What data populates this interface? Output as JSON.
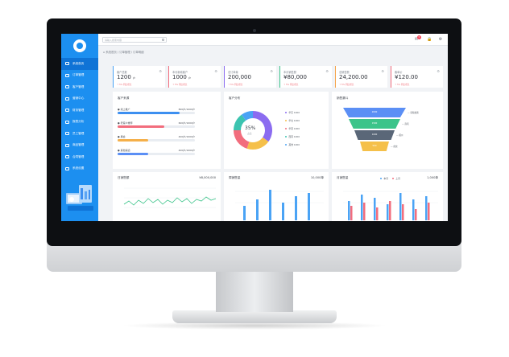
{
  "screen": {
    "search_placeholder": "请输入搜索内容",
    "breadcrumb": "系统首页 / 订单管理 / 订单明细",
    "nav": [
      {
        "label": "系统首页",
        "icon": "home-icon",
        "active": true
      },
      {
        "label": "订单管理",
        "icon": "doc-icon",
        "active": false
      },
      {
        "label": "客户管理",
        "icon": "user-icon",
        "active": false
      },
      {
        "label": "营销中心",
        "icon": "folder-icon",
        "active": false
      },
      {
        "label": "财务管理",
        "icon": "calc-icon",
        "active": false
      },
      {
        "label": "报表分析",
        "icon": "book-icon",
        "active": false
      },
      {
        "label": "员工管理",
        "icon": "person-icon",
        "active": false
      },
      {
        "label": "商品管理",
        "icon": "tag-icon",
        "active": false
      },
      {
        "label": "合同管理",
        "icon": "lock-icon",
        "active": false
      },
      {
        "label": "系统设置",
        "icon": "monitor-icon",
        "active": false
      }
    ],
    "notification_count": "5",
    "kpis": [
      {
        "title": "客户总数",
        "value": "1200",
        "unit": "户",
        "sub": "↑ 5% 同比增长",
        "color": "#4aa3f5"
      },
      {
        "title": "本月新增客户",
        "value": "1000",
        "unit": "户",
        "sub": "↑ 5% 同比增长",
        "color": "#f26d7d"
      },
      {
        "title": "总订单量",
        "value": "200,000",
        "unit": "",
        "sub": "↑ 5% 同比增长",
        "color": "#8b6cf0"
      },
      {
        "title": "本月销售额",
        "value": "¥80,000",
        "unit": "",
        "sub": "↑ 5% 同比增长",
        "color": "#3cc48a"
      },
      {
        "title": "总销售额",
        "value": "24,200.00",
        "unit": "",
        "sub": "↑ 5% 同比增长",
        "color": "#f5a44a"
      },
      {
        "title": "客单价",
        "value": "¥120.00",
        "unit": "",
        "sub": "↑ 5% 同比增长",
        "color": "#f26d7d"
      }
    ],
    "customer_source": {
      "title": "客户来源",
      "rows": [
        {
          "label": "线上推广",
          "value": "800户/1000户",
          "pct": 0.8,
          "color": "#3d8ff0"
        },
        {
          "label": "老客户推荐",
          "value": "600户/1000户",
          "pct": 0.6,
          "color": "#f26d7d"
        },
        {
          "label": "展会",
          "value": "400户/1000户",
          "pct": 0.4,
          "color": "#f5b04a"
        },
        {
          "label": "其他渠道",
          "value": "400户/1000户",
          "pct": 0.4,
          "color": "#5b8ff5"
        }
      ]
    },
    "customer_distribution": {
      "title": "客户分布",
      "center_pct": "35%",
      "center_sub": "占比",
      "slices": [
        {
          "label": "华东",
          "pct": 0.35,
          "color": "#8b6cf0"
        },
        {
          "label": "华北",
          "pct": 0.2,
          "color": "#f5c04a"
        },
        {
          "label": "华南",
          "pct": 0.2,
          "color": "#f26d7d"
        },
        {
          "label": "西南",
          "pct": 0.15,
          "color": "#3cc4b0"
        },
        {
          "label": "其他",
          "pct": 0.1,
          "color": "#4aa3f5"
        }
      ],
      "legend_value": "1000"
    },
    "funnel": {
      "title": "销售漏斗",
      "stages": [
        {
          "label": "2000",
          "color": "#5b8ff5",
          "note": "获取线索"
        },
        {
          "label": "1500",
          "color": "#3cc48a",
          "note": "商机"
        },
        {
          "label": "1000",
          "color": "#5a6778",
          "note": "报价"
        },
        {
          "label": "500",
          "color": "#f5c04a",
          "note": "成交"
        }
      ]
    },
    "daily_sales": {
      "title": "日销售额",
      "total": "¥8,000,000"
    },
    "weekly_sales": {
      "title": "周销售量",
      "total": "10,000单"
    },
    "monthly_orders": {
      "title": "月销售量",
      "total": "1,000单",
      "legend": [
        "本月",
        "上月"
      ]
    }
  }
}
